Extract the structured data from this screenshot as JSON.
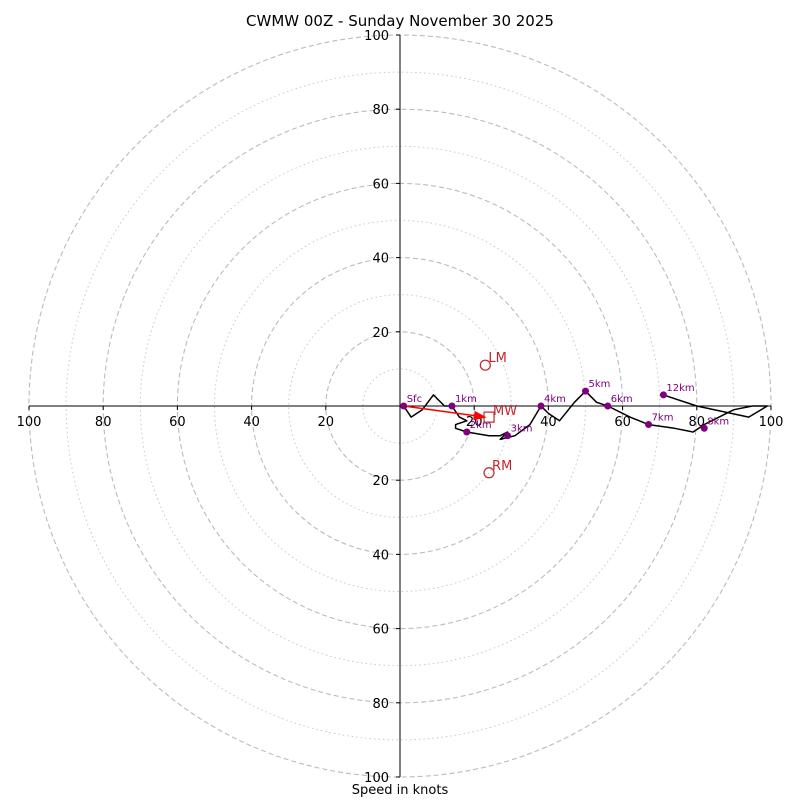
{
  "chart_data": {
    "type": "line",
    "subtype": "hodograph",
    "title": "CWMW 00Z - Sunday November 30 2025",
    "xlabel": "Speed in knots",
    "ylabel": "",
    "xlim": [
      -100,
      100
    ],
    "ylim": [
      -100,
      100
    ],
    "major_rings": [
      20,
      40,
      60,
      80,
      100
    ],
    "minor_rings": [
      10,
      30,
      50,
      70,
      90
    ],
    "grid": true,
    "x_tick_labels": [
      "100",
      "80",
      "60",
      "40",
      "20",
      "20",
      "40",
      "60",
      "80",
      "100"
    ],
    "x_tick_values": [
      -100,
      -80,
      -60,
      -40,
      -20,
      20,
      40,
      60,
      80,
      100
    ],
    "y_tick_labels": [
      "100",
      "80",
      "60",
      "40",
      "20",
      "20",
      "40",
      "60",
      "80",
      "100"
    ],
    "y_tick_values": [
      100,
      80,
      60,
      40,
      20,
      -20,
      -40,
      -60,
      -80,
      -100
    ],
    "trace": {
      "name": "wind profile",
      "color": "#000000",
      "points": [
        [
          1,
          0
        ],
        [
          3,
          -3
        ],
        [
          6,
          -1
        ],
        [
          9,
          3
        ],
        [
          12,
          0
        ],
        [
          14,
          0
        ],
        [
          16,
          -3
        ],
        [
          18,
          -4
        ],
        [
          15,
          -5
        ],
        [
          15,
          -6
        ],
        [
          18,
          -7
        ],
        [
          24,
          -8
        ],
        [
          27,
          -8
        ],
        [
          29,
          -7
        ],
        [
          27,
          -9
        ],
        [
          31,
          -8
        ],
        [
          35,
          -5
        ],
        [
          38,
          0
        ],
        [
          40,
          -2
        ],
        [
          43,
          -4
        ],
        [
          47,
          1
        ],
        [
          50,
          4
        ],
        [
          53,
          1
        ],
        [
          56,
          0
        ],
        [
          62,
          -3
        ],
        [
          67,
          -5
        ],
        [
          74,
          -6
        ],
        [
          79,
          -7
        ],
        [
          82,
          -5
        ],
        [
          86,
          -3
        ],
        [
          90,
          -1
        ],
        [
          95,
          0
        ],
        [
          99,
          0
        ],
        [
          94,
          -3
        ],
        [
          80,
          0
        ],
        [
          71,
          3
        ]
      ]
    },
    "height_markers": [
      {
        "label": "Sfc",
        "u": 1,
        "v": 0
      },
      {
        "label": "1km",
        "u": 14,
        "v": 0
      },
      {
        "label": "2km",
        "u": 18,
        "v": -7
      },
      {
        "label": "3km",
        "u": 29,
        "v": -8
      },
      {
        "label": "4km",
        "u": 38,
        "v": 0
      },
      {
        "label": "5km",
        "u": 50,
        "v": 4
      },
      {
        "label": "6km",
        "u": 56,
        "v": 0
      },
      {
        "label": "7km",
        "u": 67,
        "v": -5
      },
      {
        "label": "8km",
        "u": 82,
        "v": -6
      },
      {
        "label": "12km",
        "u": 71,
        "v": 3
      }
    ],
    "height_marker_color": "#800080",
    "storm_motion": {
      "color": "#c0272d",
      "LM": {
        "label": "LM",
        "u": 23,
        "v": 11,
        "marker": "circle"
      },
      "RM": {
        "label": "RM",
        "u": 24,
        "v": -18,
        "marker": "circle"
      },
      "MW": {
        "label": "MW",
        "u": 24,
        "v": -3,
        "marker": "square"
      }
    },
    "mean_wind_arrow": {
      "from": [
        1,
        0
      ],
      "to": [
        24,
        -3
      ],
      "color": "#ff0000"
    }
  }
}
